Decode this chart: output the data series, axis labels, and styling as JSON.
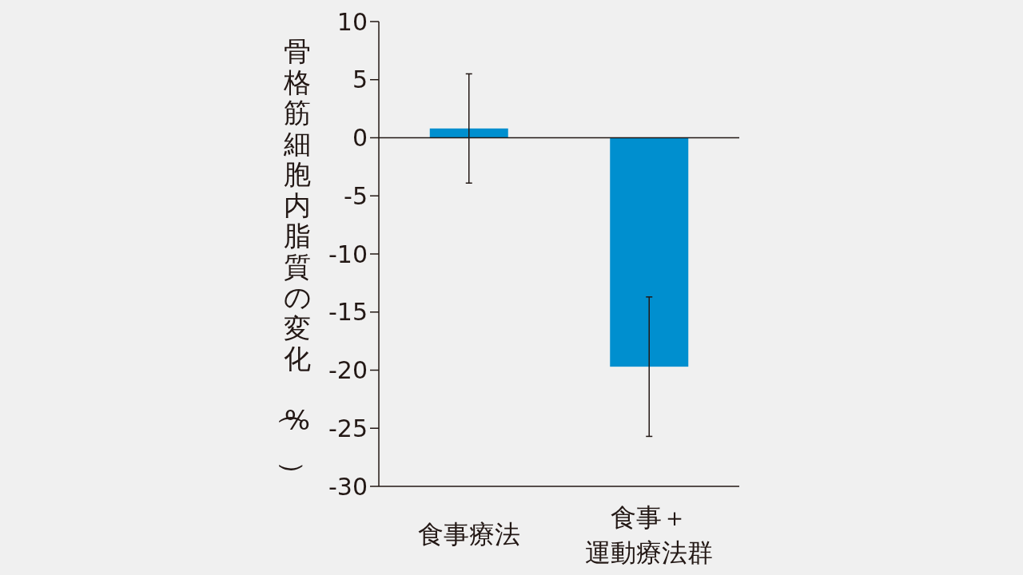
{
  "chart_data": {
    "type": "bar",
    "ylabel": "骨格筋細胞内脂質の変化（%）",
    "categories": [
      "食事療法",
      "食事＋運動療法群"
    ],
    "values": [
      0.8,
      -19.7
    ],
    "errors": [
      4.7,
      6.0
    ],
    "color": "#008fcf",
    "ylim": [
      -30,
      10
    ],
    "yticks": [
      -30,
      -25,
      -20,
      -15,
      -10,
      -5,
      0,
      5,
      10
    ],
    "ref_lines": [
      {
        "axis": "y",
        "value": 0,
        "color": "#231815"
      }
    ],
    "grid": false
  }
}
